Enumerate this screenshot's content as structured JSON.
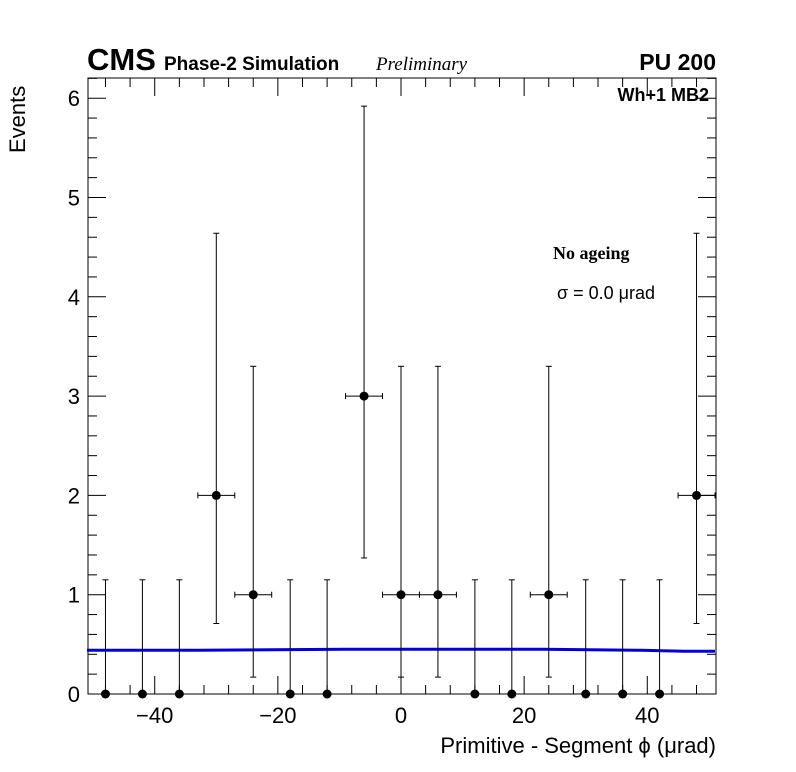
{
  "header": {
    "cms_label": "CMS",
    "subtitle": "Phase-2 Simulation",
    "status": "Preliminary",
    "pileup": "PU 200"
  },
  "annotations": {
    "category": "Wh+1 MB2",
    "ageing": "No ageing",
    "sigma": "σ = 0.0  μrad"
  },
  "colors": {
    "fit_line": "#0000dd",
    "markers": "#000000"
  },
  "chart_data": {
    "type": "scatter",
    "xlabel": "Primitive - Segment ϕ (μrad)",
    "ylabel": "Events",
    "xlim": [
      -51,
      51
    ],
    "ylim": [
      0,
      6.2
    ],
    "xticks": [
      -40,
      -20,
      0,
      20,
      40
    ],
    "xtick_labels": [
      "−40",
      "−20",
      "0",
      "20",
      "40"
    ],
    "yticks": [
      0,
      1,
      2,
      3,
      4,
      5,
      6
    ],
    "ytick_labels": [
      "0",
      "1",
      "2",
      "3",
      "4",
      "5",
      "6"
    ],
    "bin_width": 6,
    "series": [
      {
        "style": "markers-with-errors",
        "x": [
          -48,
          -42,
          -36,
          -30,
          -24,
          -18,
          -12,
          -6,
          0,
          6,
          12,
          18,
          24,
          30,
          36,
          42,
          48
        ],
        "y": [
          0,
          0,
          0,
          2,
          1,
          0,
          0,
          3,
          1,
          1,
          0,
          0,
          1,
          0,
          0,
          0,
          2
        ],
        "y_err_low": [
          0,
          0,
          0,
          1.29,
          0.83,
          0,
          0,
          1.63,
          0.83,
          0.83,
          0,
          0,
          0.83,
          0,
          0,
          0,
          1.29
        ],
        "y_err_high": [
          1.15,
          1.15,
          1.15,
          2.64,
          2.3,
          1.15,
          1.15,
          2.92,
          2.3,
          2.3,
          1.15,
          1.15,
          2.3,
          1.15,
          1.15,
          1.15,
          2.64
        ]
      },
      {
        "style": "fit-line",
        "x": [
          -51,
          -33,
          -9,
          15,
          23,
          39,
          46,
          51
        ],
        "y": [
          0.44,
          0.44,
          0.45,
          0.45,
          0.45,
          0.44,
          0.43,
          0.43
        ]
      }
    ],
    "grid": false
  }
}
